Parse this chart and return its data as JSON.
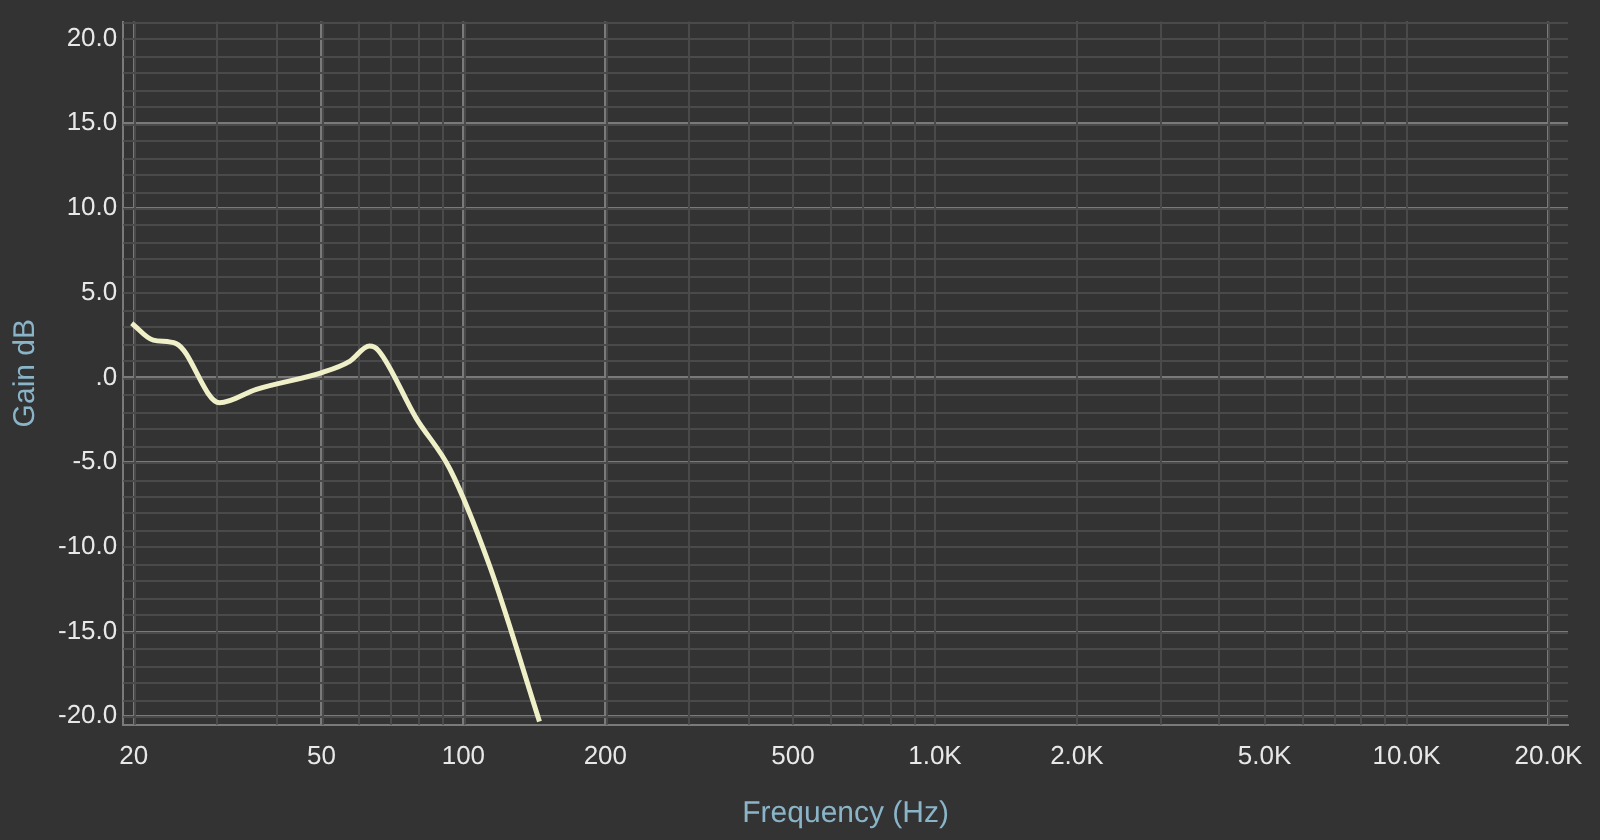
{
  "chart_data": {
    "type": "line",
    "xlabel": "Frequency (Hz)",
    "ylabel": "Gain dB",
    "log": "x",
    "grid": true,
    "legend": false,
    "marker": "none",
    "line_style": "solid",
    "xlim": [
      19,
      22000
    ],
    "ylim": [
      -20.5,
      21
    ],
    "xticks": [
      20,
      50,
      100,
      200,
      500,
      {
        "value": 1000,
        "label": "1.0K"
      },
      {
        "value": 2000,
        "label": "2.0K"
      },
      {
        "value": 5000,
        "label": "5.0K"
      },
      {
        "value": 10000,
        "label": "10.0K"
      },
      {
        "value": 20000,
        "label": "20.0K"
      }
    ],
    "yticks": [
      {
        "value": 20,
        "label": "20.0"
      },
      {
        "value": 15,
        "label": "15.0"
      },
      {
        "value": 10,
        "label": "10.0"
      },
      {
        "value": 5,
        "label": "5.0"
      },
      {
        "value": 0,
        "label": ".0"
      },
      {
        "value": -5,
        "label": "-5.0"
      },
      {
        "value": -10,
        "label": "-10.0"
      },
      {
        "value": -15,
        "label": "-15.0"
      },
      {
        "value": -20,
        "label": "-20.0"
      }
    ],
    "series": [
      {
        "color": "#f0f0c8",
        "x": [
          19.8,
          22,
          24.6,
          30.4,
          36.4,
          50.3,
          57.4,
          63.2,
          66,
          79.4,
          93.6,
          113.6,
          145
        ],
        "values": [
          3.2,
          2.2,
          2.0,
          -1.5,
          -0.7,
          0.3,
          0.95,
          1.85,
          1.6,
          -2.4,
          -5.4,
          -11.1,
          -20.3
        ]
      }
    ]
  }
}
